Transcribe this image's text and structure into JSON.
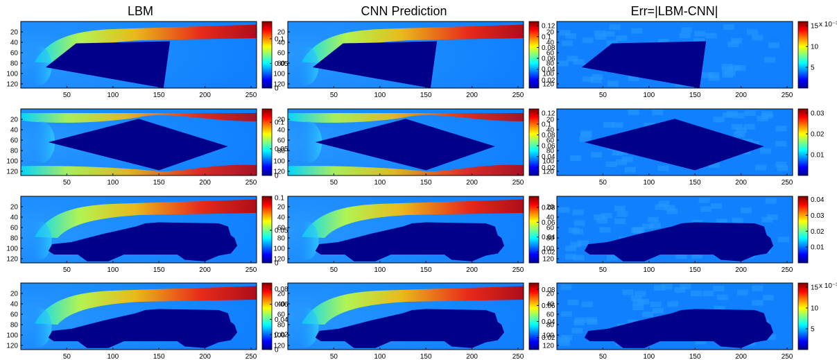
{
  "columns": [
    "LBM",
    "CNN Prediction",
    "Err=|LBM-CNN|"
  ],
  "colormap": [
    "#00008f",
    "#0000ff",
    "#0080ff",
    "#00ffff",
    "#80ff80",
    "#ffff00",
    "#ff8000",
    "#ff0000",
    "#800000"
  ],
  "background_color": "#1080ff",
  "obstacle_color": "#00008b",
  "chart_data": {
    "type": "heatmap",
    "grid": {
      "nx": 256,
      "ny": 128
    },
    "xticks": [
      50,
      100,
      150,
      200,
      250
    ],
    "yticks": [
      20,
      40,
      60,
      80,
      100,
      120
    ],
    "rows": [
      {
        "obstacle": "trapezoid",
        "panels": [
          {
            "column": "LBM",
            "clim": [
              0,
              0.135
            ],
            "colorbar_ticks": [
              0,
              0.05,
              0.1
            ],
            "colorbar_labels": [
              "0",
              "0.05",
              "0.1"
            ],
            "exponent": ""
          },
          {
            "column": "CNN Prediction",
            "clim": [
              0.005,
              0.128
            ],
            "colorbar_ticks": [
              0.02,
              0.04,
              0.06,
              0.08,
              0.1,
              0.12
            ],
            "colorbar_labels": [
              "0.02",
              "0.04",
              "0.06",
              "0.08",
              "0.1",
              "0.12"
            ],
            "exponent": ""
          },
          {
            "column": "Err=|LBM-CNN|",
            "clim": [
              0,
              16
            ],
            "colorbar_ticks": [
              5,
              10,
              15
            ],
            "colorbar_labels": [
              "5",
              "10",
              "15"
            ],
            "exponent": "x 10⁻³"
          }
        ]
      },
      {
        "obstacle": "diamond",
        "panels": [
          {
            "column": "LBM",
            "clim": [
              0,
              0.125
            ],
            "colorbar_ticks": [
              0,
              0.05,
              0.1
            ],
            "colorbar_labels": [
              "0",
              "0.05",
              "0.1"
            ],
            "exponent": ""
          },
          {
            "column": "CNN Prediction",
            "clim": [
              0.005,
              0.128
            ],
            "colorbar_ticks": [
              0.02,
              0.04,
              0.06,
              0.08,
              0.1,
              0.12
            ],
            "colorbar_labels": [
              "0.02",
              "0.04",
              "0.06",
              "0.08",
              "0.1",
              "0.12"
            ],
            "exponent": ""
          },
          {
            "column": "Err=|LBM-CNN|",
            "clim": [
              0,
              0.032
            ],
            "colorbar_ticks": [
              0.01,
              0.02,
              0.03
            ],
            "colorbar_labels": [
              "0.01",
              "0.02",
              "0.03"
            ],
            "exponent": ""
          }
        ]
      },
      {
        "obstacle": "car",
        "panels": [
          {
            "column": "LBM",
            "clim": [
              0,
              0.102
            ],
            "colorbar_ticks": [
              0,
              0.05,
              0.1
            ],
            "colorbar_labels": [
              "0",
              "0.05",
              "0.1"
            ],
            "exponent": ""
          },
          {
            "column": "CNN Prediction",
            "clim": [
              0.005,
              0.095
            ],
            "colorbar_ticks": [
              0.02,
              0.04,
              0.06,
              0.08
            ],
            "colorbar_labels": [
              "0.02",
              "0.04",
              "0.06",
              "0.08"
            ],
            "exponent": ""
          },
          {
            "column": "Err=|LBM-CNN|",
            "clim": [
              0,
              0.042
            ],
            "colorbar_ticks": [
              0.01,
              0.02,
              0.03,
              0.04
            ],
            "colorbar_labels": [
              "0.01",
              "0.02",
              "0.03",
              "0.04"
            ],
            "exponent": ""
          }
        ]
      },
      {
        "obstacle": "car",
        "panels": [
          {
            "column": "LBM",
            "clim": [
              0,
              0.088
            ],
            "colorbar_ticks": [
              0,
              0.02,
              0.04,
              0.06,
              0.08
            ],
            "colorbar_labels": [
              "0",
              "0.02",
              "0.04",
              "0.06",
              "0.08"
            ],
            "exponent": ""
          },
          {
            "column": "CNN Prediction",
            "clim": [
              0.005,
              0.088
            ],
            "colorbar_ticks": [
              0.02,
              0.04,
              0.06,
              0.08
            ],
            "colorbar_labels": [
              "0.02",
              "0.04",
              "0.06",
              "0.08"
            ],
            "exponent": ""
          },
          {
            "column": "Err=|LBM-CNN|",
            "clim": [
              0,
              16
            ],
            "colorbar_ticks": [
              5,
              10,
              15
            ],
            "colorbar_labels": [
              "5",
              "10",
              "15"
            ],
            "exponent": "x 10⁻³"
          }
        ]
      }
    ]
  }
}
